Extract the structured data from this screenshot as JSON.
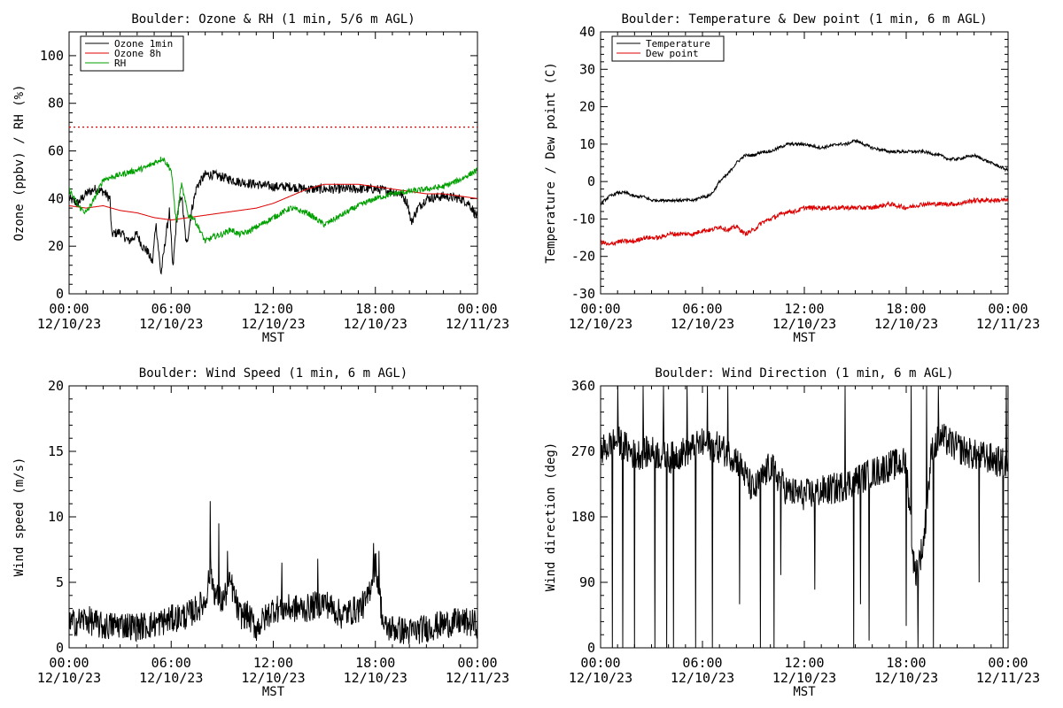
{
  "colors": {
    "black": "#000000",
    "red": "#dd0000",
    "green": "#00a000"
  },
  "x_axis": {
    "ticks": [
      0,
      6,
      12,
      18,
      24
    ],
    "tick_time": [
      "00:00",
      "06:00",
      "12:00",
      "18:00",
      "00:00"
    ],
    "tick_date": [
      "12/10/23",
      "12/10/23",
      "12/10/23",
      "12/10/23",
      "12/11/23"
    ],
    "label": "MST"
  },
  "chart_data": [
    {
      "id": "ozone_rh",
      "type": "line",
      "title": "Boulder: Ozone & RH (1 min, 5/6 m AGL)",
      "ylabel": "Ozone (ppbv) / RH (%)",
      "xlabel": "MST",
      "xlim": [
        0,
        24
      ],
      "ylim": [
        0,
        110
      ],
      "yticks": [
        0,
        20,
        40,
        60,
        80,
        100
      ],
      "legend_position": "top-left",
      "reference_line": {
        "y": 70,
        "color": "#dd0000",
        "style": "dotted"
      },
      "series": [
        {
          "name": "Ozone 1min",
          "color": "#000000",
          "noise": 2,
          "x": [
            0,
            0.5,
            1,
            1.5,
            2,
            2.4,
            2.5,
            3,
            3.5,
            4,
            4.3,
            4.6,
            4.9,
            5.1,
            5.4,
            5.7,
            5.9,
            6.1,
            6.3,
            6.6,
            6.9,
            7.2,
            7.5,
            8,
            8.5,
            9,
            9.5,
            10,
            11,
            12,
            13,
            14,
            15,
            16,
            17,
            18,
            19,
            19.5,
            19.9,
            20.1,
            20.5,
            21,
            22,
            23,
            23.5,
            24
          ],
          "y": [
            40,
            38,
            42,
            44,
            43,
            40,
            25,
            26,
            22,
            25,
            20,
            18,
            13,
            30,
            8,
            25,
            35,
            10,
            30,
            42,
            20,
            35,
            45,
            50,
            50,
            49,
            48,
            47,
            46,
            45,
            45,
            44,
            44,
            44,
            44,
            44,
            43,
            42,
            38,
            30,
            36,
            40,
            41,
            40,
            38,
            32
          ]
        },
        {
          "name": "Ozone 8h",
          "color": "#dd0000",
          "noise": 0,
          "x": [
            0,
            1,
            2,
            3,
            4,
            5,
            6,
            7,
            8,
            9,
            10,
            11,
            12,
            13,
            14,
            15,
            16,
            17,
            18,
            19,
            20,
            21,
            22,
            23,
            24
          ],
          "y": [
            37,
            36,
            37,
            35,
            34,
            32,
            31,
            32,
            33,
            34,
            35,
            36,
            38,
            41,
            44,
            46,
            46,
            46,
            45,
            44,
            43,
            42,
            42,
            41,
            40
          ]
        },
        {
          "name": "RH",
          "color": "#00a000",
          "noise": 1.2,
          "x": [
            0,
            0.5,
            1,
            1.5,
            2,
            2.5,
            3,
            3.5,
            4,
            4.5,
            5,
            5.5,
            6,
            6.3,
            6.6,
            7,
            7.3,
            7.6,
            8,
            8.5,
            9,
            9.5,
            10,
            10.5,
            11,
            12,
            13,
            14,
            15,
            16,
            17,
            18,
            19,
            20,
            21,
            22,
            23,
            23.5,
            24
          ],
          "y": [
            44,
            37,
            34,
            40,
            48,
            49,
            50,
            51,
            52,
            53,
            55,
            57,
            52,
            30,
            46,
            33,
            32,
            28,
            22,
            24,
            25,
            27,
            25,
            26,
            28,
            32,
            36,
            34,
            29,
            33,
            37,
            40,
            42,
            43,
            44,
            45,
            48,
            50,
            52
          ]
        }
      ]
    },
    {
      "id": "temp_dew",
      "type": "line",
      "title": "Boulder: Temperature & Dew point (1 min, 6 m AGL)",
      "ylabel": "Temperature / Dew point (C)",
      "xlabel": "MST",
      "xlim": [
        0,
        24
      ],
      "ylim": [
        -30,
        40
      ],
      "yticks": [
        -30,
        -20,
        -10,
        0,
        10,
        20,
        30,
        40
      ],
      "legend_position": "top-left",
      "series": [
        {
          "name": "Temperature",
          "color": "#000000",
          "noise": 0.4,
          "x": [
            0,
            0.5,
            1,
            1.5,
            2,
            2.5,
            3,
            3.5,
            4,
            4.5,
            5,
            5.5,
            6,
            6.3,
            6.6,
            7,
            7.5,
            8,
            8.5,
            9,
            9.5,
            10,
            10.5,
            11,
            12,
            13,
            14,
            14.5,
            15,
            15.5,
            16,
            17,
            18,
            19,
            20,
            20.5,
            21,
            22,
            22.5,
            23,
            24
          ],
          "y": [
            -6,
            -4,
            -3,
            -3,
            -4,
            -4,
            -5,
            -5,
            -5,
            -5,
            -5,
            -5,
            -4,
            -4,
            -3,
            0,
            2,
            5,
            7,
            7,
            8,
            8,
            9,
            10,
            10,
            9,
            10,
            10,
            11,
            10,
            9,
            8,
            8,
            8,
            7,
            6,
            6,
            7,
            6,
            5,
            3
          ]
        },
        {
          "name": "Dew point",
          "color": "#dd0000",
          "noise": 0.6,
          "x": [
            0,
            0.5,
            1,
            1.5,
            2,
            2.5,
            3,
            3.5,
            4,
            4.5,
            5,
            5.5,
            6,
            6.5,
            7,
            7.5,
            8,
            8.5,
            9,
            9.5,
            10,
            10.5,
            11,
            11.5,
            12,
            13,
            14,
            15,
            16,
            17,
            18,
            19,
            20,
            21,
            22,
            23,
            24
          ],
          "y": [
            -16,
            -17,
            -16,
            -16,
            -16,
            -15,
            -15,
            -15,
            -14,
            -14,
            -14,
            -14,
            -13,
            -13,
            -12,
            -13,
            -12,
            -14,
            -13,
            -11,
            -10,
            -9,
            -8,
            -8,
            -7,
            -7,
            -7,
            -7,
            -7,
            -6,
            -7,
            -6,
            -6,
            -6,
            -5,
            -5,
            -5
          ]
        }
      ]
    },
    {
      "id": "wind_speed",
      "type": "line",
      "title": "Boulder: Wind Speed (1 min, 6 m AGL)",
      "ylabel": "Wind speed (m/s)",
      "xlabel": "MST",
      "xlim": [
        0,
        24
      ],
      "ylim": [
        0,
        20
      ],
      "yticks": [
        0,
        5,
        10,
        15,
        20
      ],
      "series": [
        {
          "name": "",
          "color": "#000000",
          "noise": 1.1,
          "x": [
            0,
            1,
            2,
            3,
            4,
            5,
            6,
            7,
            7.5,
            8,
            8.3,
            8.6,
            9,
            9.5,
            10,
            10.5,
            11,
            12,
            13,
            14,
            15,
            16,
            17,
            17.5,
            18,
            18.5,
            19,
            20,
            21,
            22,
            23,
            24
          ],
          "y": [
            1.8,
            2.2,
            1.6,
            1.8,
            1.6,
            1.8,
            2.2,
            2.5,
            3,
            3.5,
            6,
            4,
            3.5,
            5,
            2.5,
            2.5,
            1.5,
            3,
            3,
            3,
            3.5,
            2.5,
            3,
            3.5,
            6.5,
            1.5,
            1.5,
            1.2,
            1.5,
            1.8,
            2,
            1.8
          ],
          "spikes": [
            [
              8.3,
              11.2
            ],
            [
              8.8,
              9.5
            ],
            [
              9.3,
              7.4
            ],
            [
              12.5,
              6.5
            ],
            [
              14.6,
              6.8
            ],
            [
              17.9,
              8.0
            ],
            [
              18.2,
              7.4
            ]
          ]
        }
      ]
    },
    {
      "id": "wind_direction",
      "type": "line",
      "title": "Boulder: Wind Direction (1 min, 6 m AGL)",
      "ylabel": "Wind direction (deg)",
      "xlabel": "MST",
      "xlim": [
        0,
        24
      ],
      "ylim": [
        0,
        360
      ],
      "yticks": [
        0,
        90,
        180,
        270,
        360
      ],
      "series": [
        {
          "name": "",
          "color": "#000000",
          "noise": 22,
          "x": [
            0,
            1,
            2,
            3,
            4,
            5,
            6,
            7,
            8,
            9,
            10,
            11,
            12,
            13,
            14,
            15,
            16,
            17,
            18,
            18.5,
            19,
            19.5,
            20,
            21,
            22,
            23,
            24
          ],
          "y": [
            270,
            285,
            265,
            270,
            260,
            270,
            280,
            275,
            260,
            215,
            250,
            215,
            210,
            215,
            220,
            230,
            240,
            250,
            255,
            100,
            140,
            270,
            290,
            275,
            265,
            260,
            250
          ],
          "spikes": [
            [
              0.7,
              0
            ],
            [
              1.0,
              360
            ],
            [
              1.3,
              0
            ],
            [
              2.0,
              0
            ],
            [
              2.5,
              360
            ],
            [
              3.2,
              0
            ],
            [
              3.7,
              360
            ],
            [
              3.9,
              0
            ],
            [
              4.3,
              0
            ],
            [
              5.1,
              360
            ],
            [
              5.6,
              0
            ],
            [
              6.3,
              360
            ],
            [
              6.6,
              0
            ],
            [
              7.5,
              360
            ],
            [
              8.2,
              60
            ],
            [
              9.4,
              0
            ],
            [
              10.2,
              0
            ],
            [
              10.6,
              100
            ],
            [
              12.6,
              80
            ],
            [
              14.4,
              360
            ],
            [
              14.9,
              0
            ],
            [
              15.3,
              60
            ],
            [
              15.8,
              10
            ],
            [
              18.0,
              30
            ],
            [
              18.3,
              360
            ],
            [
              18.7,
              0
            ],
            [
              19.2,
              360
            ],
            [
              19.6,
              0
            ],
            [
              19.9,
              360
            ],
            [
              22.3,
              90
            ],
            [
              23.7,
              0
            ],
            [
              23.9,
              360
            ]
          ]
        }
      ]
    }
  ]
}
